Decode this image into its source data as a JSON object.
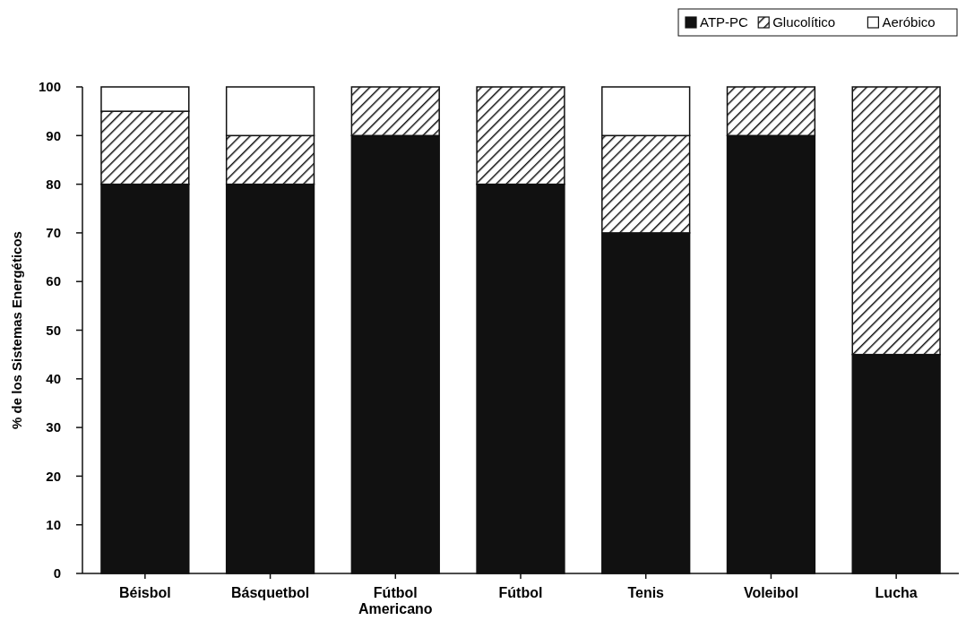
{
  "chart_data": {
    "type": "bar",
    "stacked": true,
    "ylabel": "% de los Sistemas Energéticos",
    "categories": [
      "Béisbol",
      "Básquetbol",
      "Fútbol Americano",
      "Fútbol",
      "Tenis",
      "Voleibol",
      "Lucha"
    ],
    "series": [
      {
        "name": "ATP-PC",
        "color": "#111111",
        "values": [
          80,
          80,
          90,
          80,
          70,
          90,
          45
        ]
      },
      {
        "name": "Glucolítico",
        "color": "#111111",
        "values": [
          15,
          10,
          10,
          20,
          20,
          10,
          55
        ]
      },
      {
        "name": "Aeróbico",
        "color": "#ffffff",
        "values": [
          5,
          10,
          0,
          0,
          10,
          0,
          0
        ]
      }
    ],
    "ylim": [
      0,
      100
    ],
    "yticks": [
      0,
      10,
      20,
      30,
      40,
      50,
      60,
      70,
      80,
      90,
      100
    ],
    "legend": "top right",
    "grid": false
  }
}
